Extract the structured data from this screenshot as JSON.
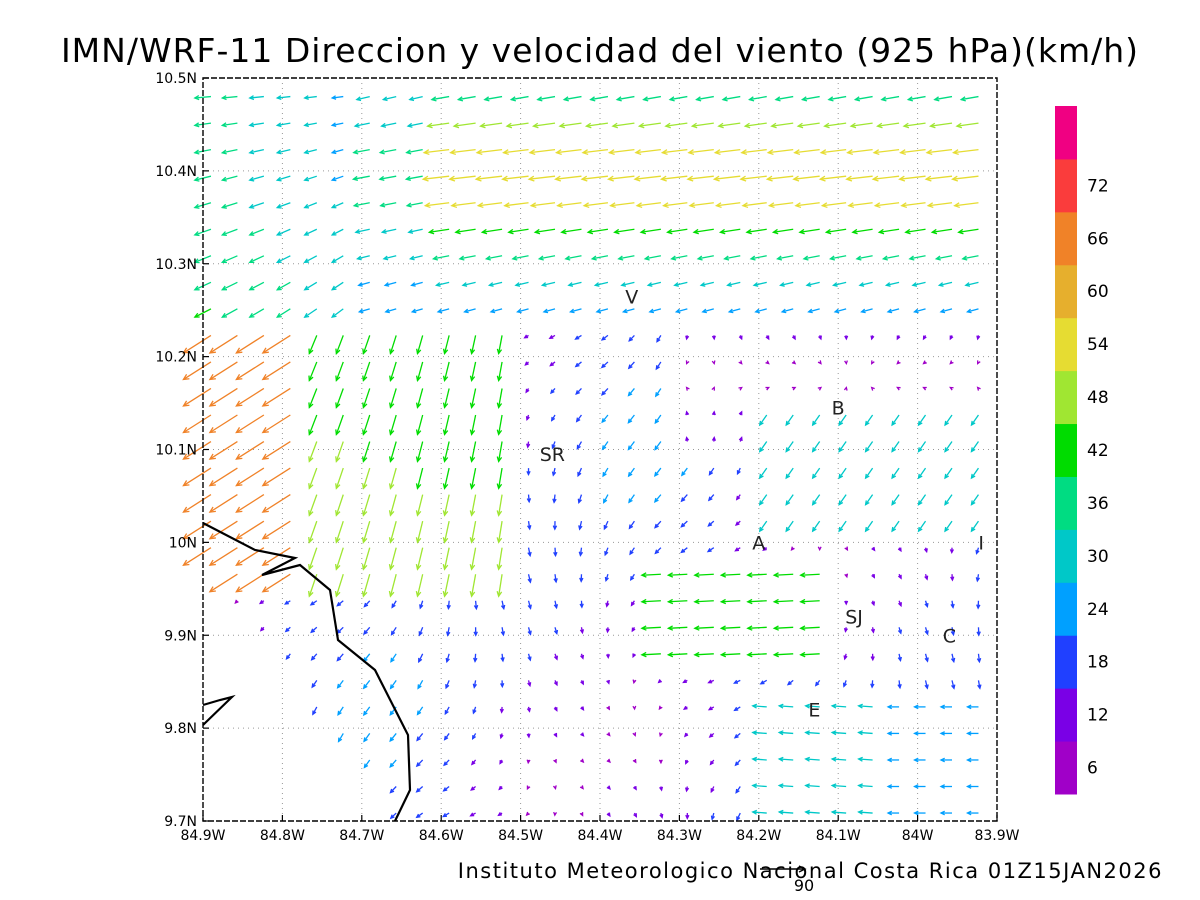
{
  "chart_data": {
    "type": "vector_field",
    "title": "IMN/WRF-11 Direccion y velocidad del viento (925 hPa)(km/h)",
    "footer": "Instituto Meteorologico Nacional Costa Rica 01Z15JAN2026",
    "reference_vector_label": "90",
    "x_ticks": [
      "84.9W",
      "84.8W",
      "84.7W",
      "84.6W",
      "84.5W",
      "84.4W",
      "84.3W",
      "84.2W",
      "84.1W",
      "84W",
      "83.9W"
    ],
    "y_ticks": [
      "10.5N",
      "10.4N",
      "10.3N",
      "10.2N",
      "10.1N",
      "10N",
      "9.9N",
      "9.8N",
      "9.7N"
    ],
    "x_range": [
      -84.9,
      -83.9
    ],
    "y_range": [
      9.7,
      10.5
    ],
    "grid": true,
    "colorbar": {
      "labels": [
        "6",
        "12",
        "18",
        "24",
        "30",
        "36",
        "42",
        "48",
        "54",
        "60",
        "66",
        "72"
      ],
      "colors": [
        "#a000c8",
        "#7a00e6",
        "#2040ff",
        "#00a0ff",
        "#00c8c8",
        "#00dc82",
        "#00dc00",
        "#a0e632",
        "#e6dc32",
        "#e6af2d",
        "#f08228",
        "#fa3c3c",
        "#f00082"
      ]
    },
    "places": [
      {
        "label": "V",
        "lon": -84.36,
        "lat": 10.265
      },
      {
        "label": "SR",
        "lon": -84.46,
        "lat": 10.095
      },
      {
        "label": "B",
        "lon": -84.1,
        "lat": 10.145
      },
      {
        "label": "A",
        "lon": -84.2,
        "lat": 10.0
      },
      {
        "label": "I",
        "lon": -83.92,
        "lat": 10.0
      },
      {
        "label": "SJ",
        "lon": -84.08,
        "lat": 9.92
      },
      {
        "label": "C",
        "lon": -83.96,
        "lat": 9.9
      },
      {
        "label": "E",
        "lon": -84.13,
        "lat": 9.82
      }
    ]
  }
}
